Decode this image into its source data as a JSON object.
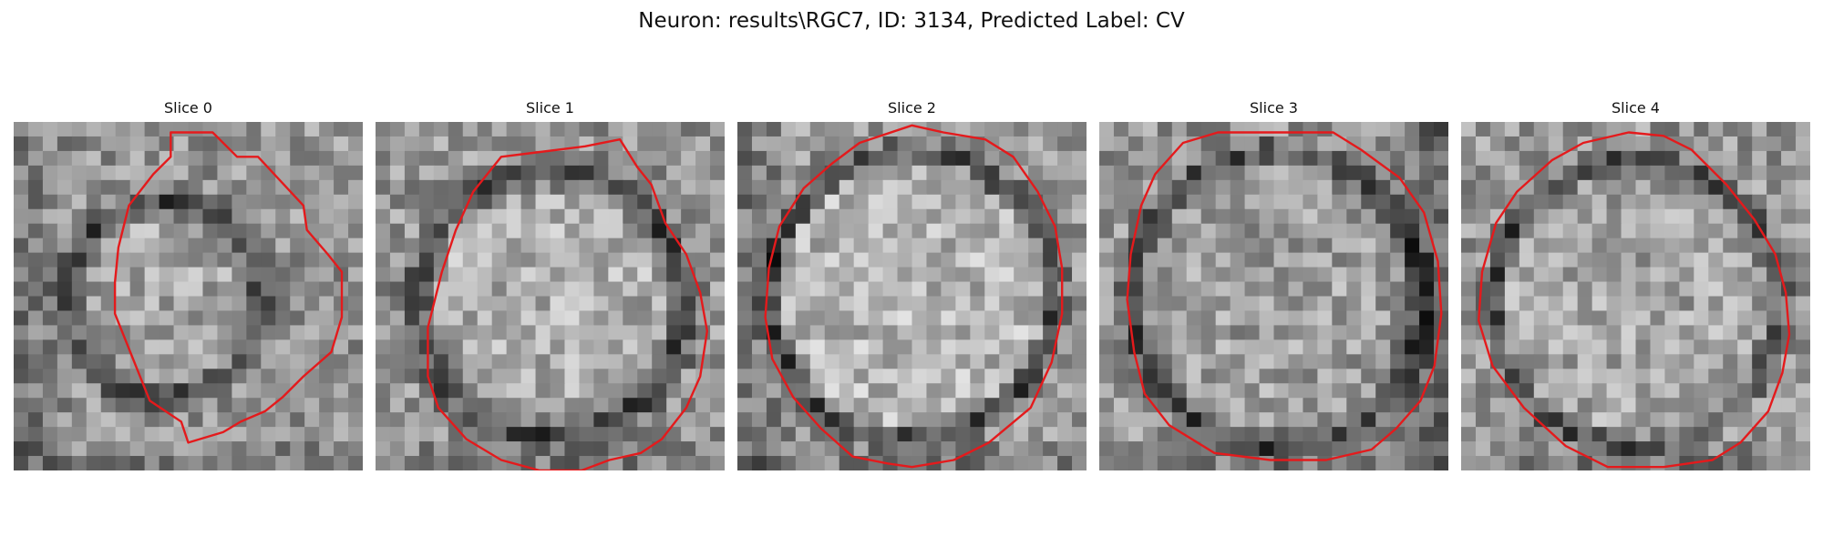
{
  "figure": {
    "title": "Neuron: results\\RGC7, ID: 3134, Predicted Label: CV"
  },
  "slices": [
    {
      "label": "Slice 0"
    },
    {
      "label": "Slice 1"
    },
    {
      "label": "Slice 2"
    },
    {
      "label": "Slice 3"
    },
    {
      "label": "Slice 4"
    }
  ],
  "colors": {
    "contour": "#e41a1c",
    "background": "#ffffff"
  }
}
